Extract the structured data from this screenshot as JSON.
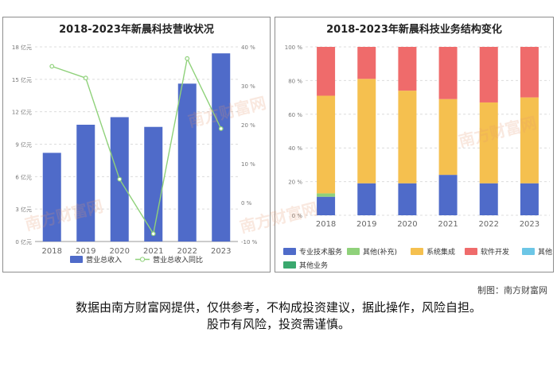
{
  "colors": {
    "revenue_bar": "#4f6bc9",
    "revenue_line": "#8fd17a",
    "segments": [
      "#4f6bc9",
      "#8fd17a",
      "#f5c04f",
      "#ef6b6b",
      "#6cc6e6",
      "#3aa86e"
    ]
  },
  "watermark": "南方财富网",
  "credit": "制图：南方财富网",
  "disclaimer": {
    "line1": "数据由南方财富网提供，仅供参考，不构成投资建议，据此操作，风险自担。",
    "line2": "股市有风险，投资需谨慎。"
  },
  "chart_data": [
    {
      "type": "bar",
      "title": "2018-2023年新晨科技营收状况",
      "categories": [
        "2018",
        "2019",
        "2020",
        "2021",
        "2022",
        "2023"
      ],
      "series": [
        {
          "name": "营业总收入",
          "type": "bar",
          "axis": "left",
          "values": [
            8.2,
            10.8,
            11.5,
            10.6,
            14.6,
            17.4
          ]
        },
        {
          "name": "营业总收入同比",
          "type": "line",
          "axis": "right",
          "values": [
            35,
            32,
            6,
            -8,
            37,
            19
          ]
        }
      ],
      "ylim_left": [
        0,
        18
      ],
      "ylim_right": [
        -10,
        40
      ],
      "yticks_left": [
        "0 亿元",
        "3 亿元",
        "6 亿元",
        "9 亿元",
        "12 亿元",
        "15 亿元",
        "18 亿元"
      ],
      "yticks_right": [
        "-10 %",
        "0 %",
        "10 %",
        "20 %",
        "30 %",
        "40 %"
      ],
      "legend": "bottom"
    },
    {
      "type": "bar",
      "stacked": true,
      "title": "2018-2023年新晨科技业务结构变化",
      "categories": [
        "2018",
        "2019",
        "2020",
        "2021",
        "2022",
        "2023"
      ],
      "series": [
        {
          "name": "专业技术服务",
          "values": [
            11,
            19,
            19,
            24,
            19,
            19
          ]
        },
        {
          "name": "其他(补充)",
          "values": [
            2,
            0,
            0,
            0,
            0,
            0
          ]
        },
        {
          "name": "系统集成",
          "values": [
            58,
            62,
            55,
            45,
            48,
            51
          ]
        },
        {
          "name": "软件开发",
          "values": [
            29,
            19,
            26,
            31,
            33,
            30
          ]
        },
        {
          "name": "其他",
          "values": [
            0,
            0,
            0,
            0,
            0,
            0
          ]
        },
        {
          "name": "其他业务",
          "values": [
            0,
            0,
            0,
            0,
            0,
            0
          ]
        }
      ],
      "ylim": [
        0,
        100
      ],
      "yticks": [
        "0 %",
        "20 %",
        "40 %",
        "60 %",
        "80 %",
        "100 %"
      ],
      "legend": "bottom"
    }
  ]
}
